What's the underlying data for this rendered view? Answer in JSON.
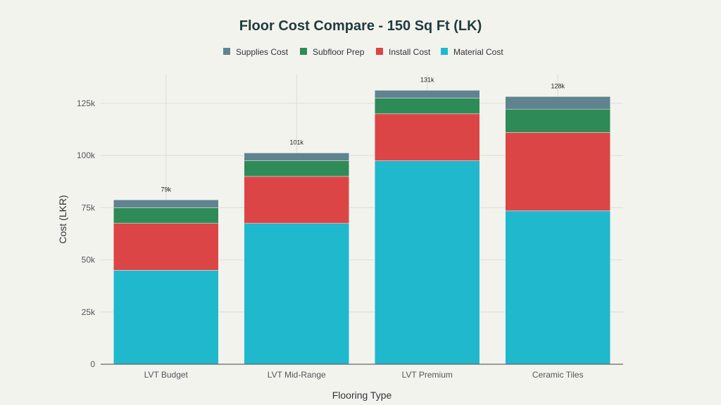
{
  "chart_data": {
    "type": "bar",
    "stacked": true,
    "title": "Floor Cost Compare - 150 Sq Ft (LK)",
    "xlabel": "Flooring Type",
    "ylabel": "Cost (LKR)",
    "ylim": [
      0,
      140000
    ],
    "yticks": [
      0,
      25000,
      50000,
      75000,
      100000,
      125000
    ],
    "ytick_labels": [
      "0",
      "25k",
      "50k",
      "75k",
      "100k",
      "125k"
    ],
    "grid": true,
    "legend_position": "top",
    "categories": [
      "LVT Budget",
      "LVT Mid-Range",
      "LVT Premium",
      "Ceramic Tiles"
    ],
    "series": [
      {
        "name": "Material Cost",
        "color": "#1fb8cd",
        "values": [
          45000,
          67500,
          97500,
          73500
        ]
      },
      {
        "name": "Install Cost",
        "color": "#db4545",
        "values": [
          22500,
          22500,
          22500,
          37500
        ]
      },
      {
        "name": "Subfloor Prep",
        "color": "#2e8b57",
        "values": [
          7500,
          7500,
          7500,
          11250
        ]
      },
      {
        "name": "Supplies Cost",
        "color": "#5f8490",
        "values": [
          3750,
          3750,
          3750,
          6000
        ]
      }
    ],
    "legend_order": [
      "Supplies Cost",
      "Subfloor Prep",
      "Install Cost",
      "Material Cost"
    ],
    "total_labels": [
      "79k",
      "101k",
      "131k",
      "128k"
    ]
  }
}
